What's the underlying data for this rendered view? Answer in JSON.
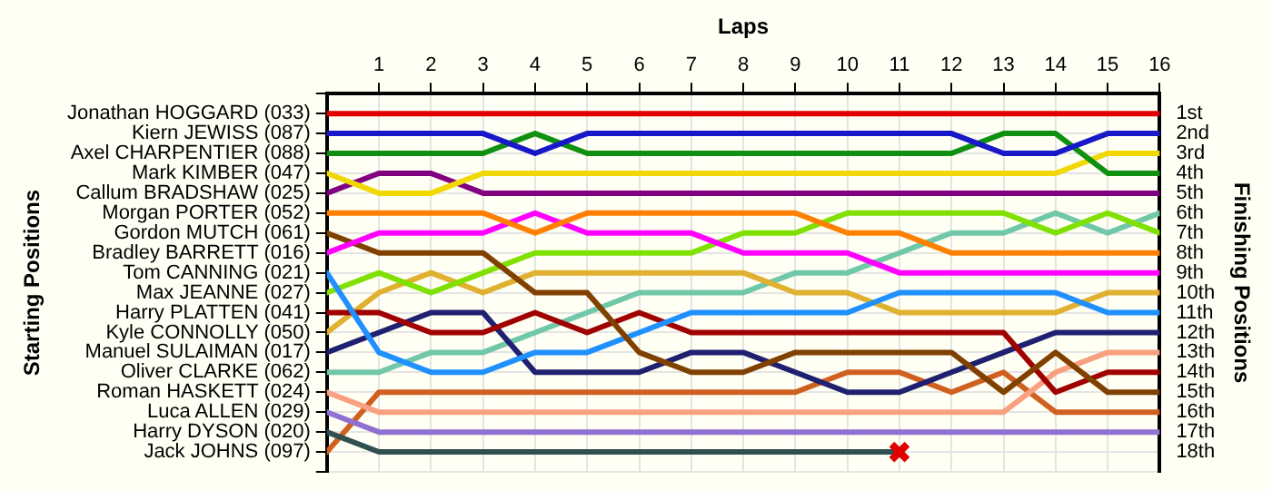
{
  "chart_data": {
    "type": "line",
    "xlabel": "Laps",
    "annotations": [
      "Starting Positions"
    ],
    "y2label": "Finishing Positions",
    "x": [
      0,
      1,
      2,
      3,
      4,
      5,
      6,
      7,
      8,
      9,
      10,
      11,
      12,
      13,
      14,
      15,
      16
    ],
    "xlim": [
      0,
      16
    ],
    "xticks": [
      1,
      2,
      3,
      4,
      5,
      6,
      7,
      8,
      9,
      10,
      11,
      12,
      13,
      14,
      15,
      16
    ],
    "y_categories": [
      "Jonathan HOGGARD (033)",
      "Kiern JEWISS (087)",
      "Axel CHARPENTIER (088)",
      "Mark KIMBER (047)",
      "Callum BRADSHAW (025)",
      "Morgan PORTER (052)",
      "Gordon MUTCH (061)",
      "Bradley BARRETT (016)",
      "Tom CANNING (021)",
      "Max JEANNE (027)",
      "Harry PLATTEN (041)",
      "Kyle CONNOLLY (050)",
      "Manuel SULAIMAN (017)",
      "Oliver CLARKE (062)",
      "Roman HASKETT (024)",
      "Luca ALLEN (029)",
      "Harry DYSON (020)",
      "Jack JOHNS (097)"
    ],
    "y2lim": [
      19,
      0
    ],
    "y2ticks": [
      {
        "value": 0,
        "label": null
      },
      {
        "value": 1,
        "label": "1st"
      },
      {
        "value": 2,
        "label": "2nd"
      },
      {
        "value": 3,
        "label": "3rd"
      },
      {
        "value": 4,
        "label": "4th"
      },
      {
        "value": 5,
        "label": "5th"
      },
      {
        "value": 6,
        "label": "6th"
      },
      {
        "value": 7,
        "label": "7th"
      },
      {
        "value": 8,
        "label": "8th"
      },
      {
        "value": 9,
        "label": "9th"
      },
      {
        "value": 10,
        "label": "10th"
      },
      {
        "value": 11,
        "label": "11th"
      },
      {
        "value": 12,
        "label": "12th"
      },
      {
        "value": 13,
        "label": "13th"
      },
      {
        "value": 14,
        "label": "14th"
      },
      {
        "value": 15,
        "label": "15th"
      },
      {
        "value": 16,
        "label": "16th"
      },
      {
        "value": 17,
        "label": "17th"
      },
      {
        "value": 18,
        "label": "18th"
      },
      {
        "value": 19,
        "label": null
      }
    ],
    "grid": true,
    "legend": false,
    "marker": "none",
    "series": [
      {
        "axis": "y2",
        "color": "#e00000",
        "values": [
          1,
          1,
          1,
          1,
          1,
          1,
          1,
          1,
          1,
          1,
          1,
          1,
          1,
          1,
          1,
          1,
          1
        ]
      },
      {
        "axis": "y2",
        "color": "#1818c8",
        "values": [
          2,
          2,
          2,
          2,
          3,
          2,
          2,
          2,
          2,
          2,
          2,
          2,
          2,
          3,
          3,
          2,
          2
        ]
      },
      {
        "axis": "y2",
        "color": "#109010",
        "values": [
          3,
          3,
          3,
          3,
          2,
          3,
          3,
          3,
          3,
          3,
          3,
          3,
          3,
          2,
          2,
          4,
          4
        ]
      },
      {
        "axis": "y2",
        "color": "#f0d800",
        "values": [
          4,
          5,
          5,
          4,
          4,
          4,
          4,
          4,
          4,
          4,
          4,
          4,
          4,
          4,
          4,
          3,
          3
        ]
      },
      {
        "axis": "y2",
        "color": "#800080",
        "values": [
          5,
          4,
          4,
          5,
          5,
          5,
          5,
          5,
          5,
          5,
          5,
          5,
          5,
          5,
          5,
          5,
          5
        ]
      },
      {
        "axis": "y2",
        "color": "#ff8000",
        "values": [
          6,
          6,
          6,
          6,
          7,
          6,
          6,
          6,
          6,
          6,
          7,
          7,
          8,
          8,
          8,
          8,
          8
        ]
      },
      {
        "axis": "y2",
        "color": "#ff00ff",
        "values": [
          8,
          7,
          7,
          7,
          6,
          7,
          7,
          7,
          8,
          8,
          8,
          9,
          9,
          9,
          9,
          9,
          9
        ]
      },
      {
        "axis": "y2",
        "color": "#804000",
        "values": [
          7,
          8,
          8,
          8,
          10,
          10,
          13,
          14,
          14,
          13,
          13,
          13,
          13,
          15,
          13,
          15,
          15
        ]
      },
      {
        "axis": "y2",
        "color": "#2090ff",
        "values": [
          9,
          13,
          14,
          14,
          13,
          13,
          12,
          11,
          11,
          11,
          11,
          10,
          10,
          10,
          10,
          11,
          11
        ]
      },
      {
        "axis": "y2",
        "color": "#80e000",
        "values": [
          10,
          9,
          10,
          9,
          8,
          8,
          8,
          8,
          7,
          7,
          6,
          6,
          6,
          6,
          7,
          6,
          7
        ]
      },
      {
        "axis": "y2",
        "color": "#a00000",
        "values": [
          11,
          11,
          12,
          12,
          11,
          12,
          11,
          12,
          12,
          12,
          12,
          12,
          12,
          12,
          15,
          14,
          14
        ]
      },
      {
        "axis": "y2",
        "color": "#e0b030",
        "values": [
          12,
          10,
          9,
          10,
          9,
          9,
          9,
          9,
          9,
          10,
          10,
          11,
          11,
          11,
          11,
          10,
          10
        ]
      },
      {
        "axis": "y2",
        "color": "#202070",
        "values": [
          13,
          12,
          11,
          11,
          14,
          14,
          14,
          13,
          13,
          14,
          15,
          15,
          14,
          13,
          12,
          12,
          12
        ]
      },
      {
        "axis": "y2",
        "color": "#70c8a8",
        "values": [
          14,
          14,
          13,
          13,
          12,
          11,
          10,
          10,
          10,
          9,
          9,
          8,
          7,
          7,
          6,
          7,
          6
        ]
      },
      {
        "axis": "y2",
        "color": "#f8a080",
        "values": [
          15,
          16,
          16,
          16,
          16,
          16,
          16,
          16,
          16,
          16,
          16,
          16,
          16,
          16,
          14,
          13,
          13
        ]
      },
      {
        "axis": "y2",
        "color": "#9070d0",
        "values": [
          16,
          17,
          17,
          17,
          17,
          17,
          17,
          17,
          17,
          17,
          17,
          17,
          17,
          17,
          17,
          17,
          17
        ]
      },
      {
        "axis": "y2",
        "color": "#305050",
        "values": [
          17,
          18,
          18,
          18,
          18,
          18,
          18,
          18,
          18,
          18,
          18,
          18,
          null,
          null,
          null,
          null,
          null
        ]
      },
      {
        "axis": "y2",
        "color": "#d06020",
        "values": [
          18,
          15,
          15,
          15,
          15,
          15,
          15,
          15,
          15,
          15,
          14,
          14,
          15,
          14,
          16,
          16,
          16
        ]
      },
      {
        "axis": "y2",
        "type": "scatter",
        "marker": "cross",
        "color": "#e00000",
        "x": [
          11
        ],
        "values": [
          18
        ]
      }
    ]
  }
}
